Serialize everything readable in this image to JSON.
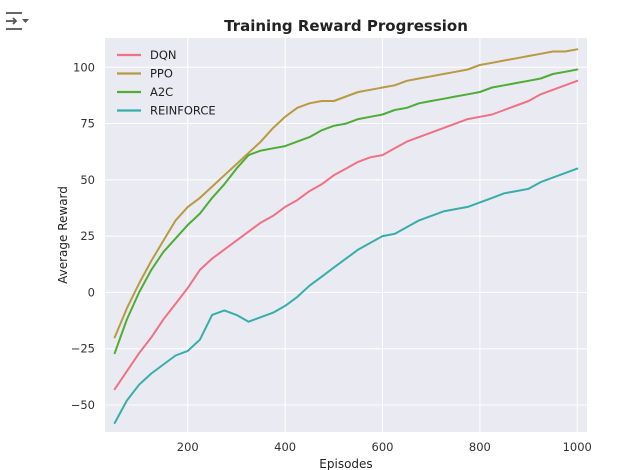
{
  "output_icon": "output-collapse-icon",
  "chart_data": {
    "type": "line",
    "title": "Training Reward Progression",
    "xlabel": "Episodes",
    "ylabel": "Average Reward",
    "xlim": [
      30,
      1020
    ],
    "ylim": [
      -62,
      113
    ],
    "xticks": [
      200,
      400,
      600,
      800,
      1000
    ],
    "yticks": [
      -50,
      -25,
      0,
      25,
      50,
      75,
      100
    ],
    "grid": true,
    "legend_position": "top-left",
    "background": "#eaeaf2",
    "x": [
      50,
      75,
      100,
      125,
      150,
      175,
      200,
      225,
      250,
      275,
      300,
      325,
      350,
      375,
      400,
      425,
      450,
      475,
      500,
      525,
      550,
      575,
      600,
      625,
      650,
      675,
      700,
      725,
      750,
      775,
      800,
      825,
      850,
      875,
      900,
      925,
      950,
      975,
      1000
    ],
    "series": [
      {
        "name": "DQN",
        "color": "#f07183",
        "values": [
          -43,
          -35,
          -27,
          -20,
          -12,
          -5,
          2,
          10,
          15,
          19,
          23,
          27,
          31,
          34,
          38,
          41,
          45,
          48,
          52,
          55,
          58,
          60,
          61,
          64,
          67,
          69,
          71,
          73,
          75,
          77,
          78,
          79,
          81,
          83,
          85,
          88,
          90,
          92,
          94
        ]
      },
      {
        "name": "PPO",
        "color": "#b89a40",
        "values": [
          -20,
          -7,
          4,
          14,
          23,
          32,
          38,
          42,
          47,
          52,
          57,
          62,
          67,
          73,
          78,
          82,
          84,
          85,
          85,
          87,
          89,
          90,
          91,
          92,
          94,
          95,
          96,
          97,
          98,
          99,
          101,
          102,
          103,
          104,
          105,
          106,
          107,
          107,
          108
        ]
      },
      {
        "name": "A2C",
        "color": "#4ead35",
        "values": [
          -27,
          -12,
          0,
          10,
          18,
          24,
          30,
          35,
          42,
          48,
          55,
          61,
          63,
          64,
          65,
          67,
          69,
          72,
          74,
          75,
          77,
          78,
          79,
          81,
          82,
          84,
          85,
          86,
          87,
          88,
          89,
          91,
          92,
          93,
          94,
          95,
          97,
          98,
          99
        ]
      },
      {
        "name": "REINFORCE",
        "color": "#36aeaa",
        "values": [
          -58,
          -48,
          -41,
          -36,
          -32,
          -28,
          -26,
          -21,
          -10,
          -8,
          -10,
          -13,
          -11,
          -9,
          -6,
          -2,
          3,
          7,
          11,
          15,
          19,
          22,
          25,
          26,
          29,
          32,
          34,
          36,
          37,
          38,
          40,
          42,
          44,
          45,
          46,
          49,
          51,
          53,
          55
        ]
      }
    ]
  }
}
